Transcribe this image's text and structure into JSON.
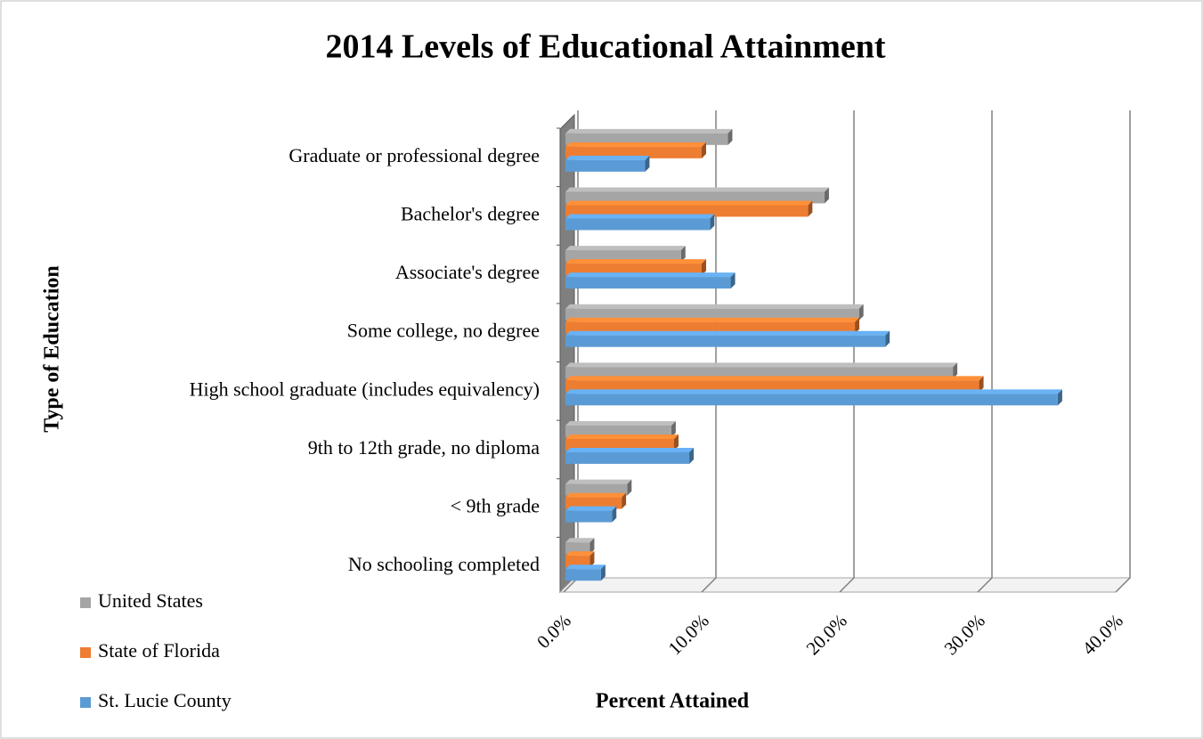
{
  "chart_data": {
    "type": "bar3d_horizontal",
    "title": "2014 Levels of Educational Attainment",
    "x_label": "Percent Attained",
    "y_label": "Type of Education",
    "categories": [
      "Graduate or professional degree",
      "Bachelor's degree",
      "Associate's degree",
      "Some college, no degree",
      "High school graduate (includes equivalency)",
      "9th to 12th grade, no diploma",
      "< 9th grade",
      "No schooling completed"
    ],
    "series": [
      {
        "name": "United States",
        "color": "#a5a5a5",
        "values": [
          11.9,
          18.9,
          8.5,
          21.4,
          28.2,
          7.8,
          4.6,
          1.9
        ]
      },
      {
        "name": "State of Florida",
        "color": "#ed7d31",
        "values": [
          10.0,
          17.7,
          10.0,
          21.1,
          30.1,
          8.0,
          4.2,
          1.9
        ]
      },
      {
        "name": "St. Lucie County",
        "color": "#5b9bd5",
        "values": [
          5.9,
          10.6,
          12.1,
          23.3,
          35.8,
          9.1,
          3.5,
          2.7
        ]
      }
    ],
    "xlim": [
      0,
      40
    ],
    "xticks": [
      {
        "value": 0,
        "label": "0.0%"
      },
      {
        "value": 10,
        "label": "10.0%"
      },
      {
        "value": 20,
        "label": "20.0%"
      },
      {
        "value": 30,
        "label": "30.0%"
      },
      {
        "value": 40,
        "label": "40.0%"
      }
    ],
    "grid": true,
    "legend": "bottom-left"
  }
}
